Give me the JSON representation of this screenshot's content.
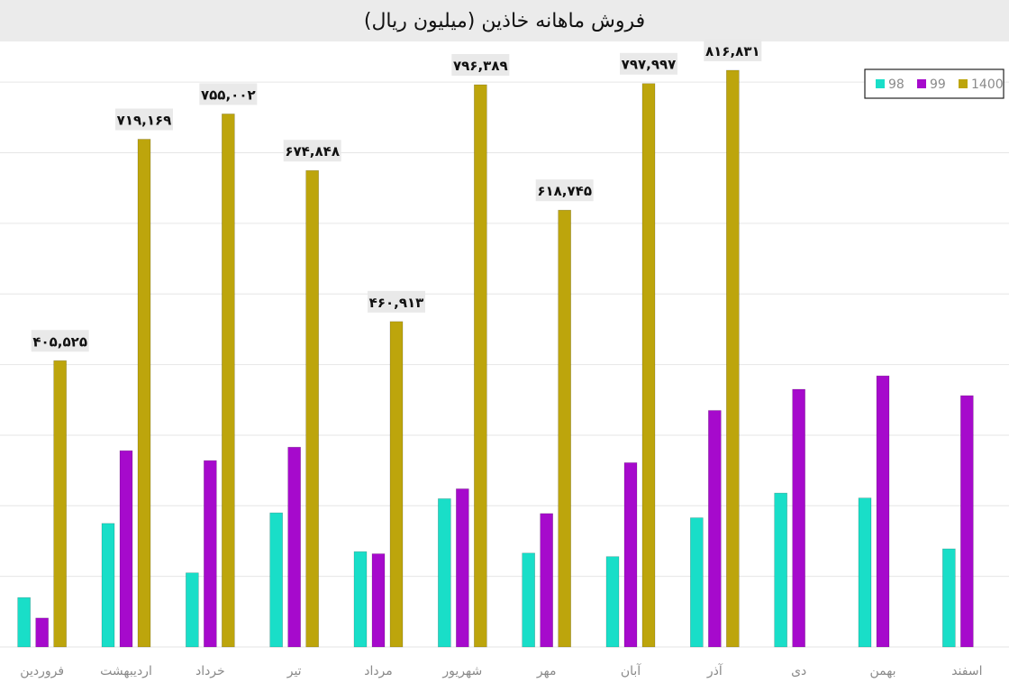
{
  "chart_data": {
    "type": "bar",
    "title": "فروش ماهانه خاذین (میلیون ریال)",
    "categories": [
      "فروردین",
      "اردیبهشت",
      "خرداد",
      "تیر",
      "مرداد",
      "شهریور",
      "مهر",
      "آبان",
      "آذر",
      "دی",
      "بهمن",
      "اسفند"
    ],
    "series": [
      {
        "name": "98",
        "color": "#19dec8",
        "values": [
          70,
          175,
          105,
          190,
          135,
          210,
          133,
          128,
          183,
          218,
          211,
          139
        ]
      },
      {
        "name": "99",
        "color": "#a60acc",
        "values": [
          41,
          278,
          264,
          283,
          132,
          224,
          189,
          261,
          335,
          365,
          384,
          356
        ]
      },
      {
        "name": "1400",
        "color": "#bda50c",
        "values": [
          405.525,
          719.169,
          755.002,
          674.848,
          460.913,
          796.389,
          618.745,
          797.997,
          816.831,
          null,
          null,
          null
        ]
      }
    ],
    "data_labels": [
      "۴۰۵,۵۲۵",
      "۷۱۹,۱۶۹",
      "۷۵۵,۰۰۲",
      "۶۷۴,۸۴۸",
      "۴۶۰,۹۱۳",
      "۷۹۶,۳۸۹",
      "۶۱۸,۷۴۵",
      "۷۹۷,۹۹۷",
      "۸۱۶,۸۳۱",
      "",
      "",
      ""
    ],
    "xlabel": "",
    "ylabel": "",
    "ylim": [
      0,
      850
    ],
    "grid": true,
    "legend_position": "top-right"
  },
  "colors": {
    "title_bg": "#ebebeb",
    "grid": "#e6e6e6",
    "label_bg": "#e9e9e9",
    "axis_text": "#8a8a8a"
  }
}
